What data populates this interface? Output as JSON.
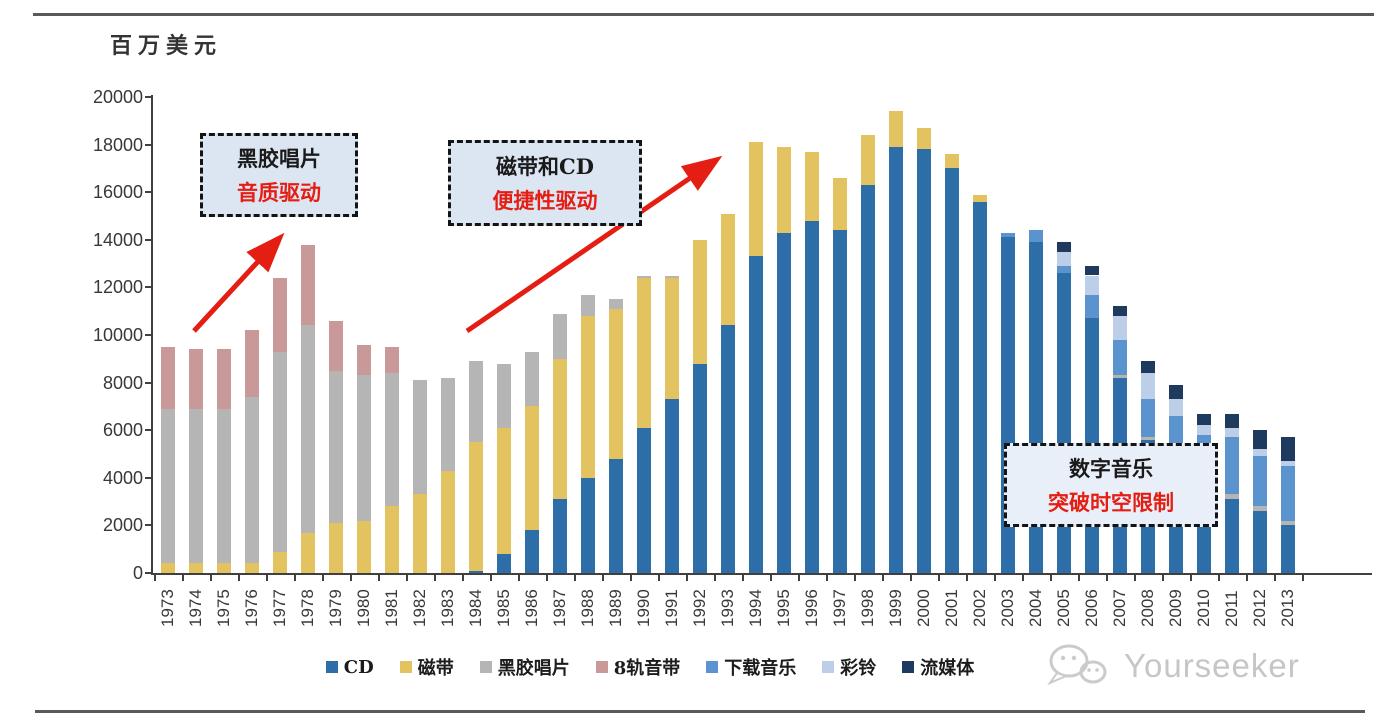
{
  "page": {
    "watermark": "Yourseeker"
  },
  "chart_data": {
    "type": "bar",
    "stacked": true,
    "title": "",
    "unit_label": "百万美元",
    "xlabel": "",
    "ylabel": "百万美元",
    "ylim": [
      0,
      20000
    ],
    "ytick_step": 2000,
    "gridlines": false,
    "legend_position": "bottom",
    "categories": [
      "1973",
      "1974",
      "1975",
      "1976",
      "1977",
      "1978",
      "1979",
      "1980",
      "1981",
      "1982",
      "1983",
      "1984",
      "1985",
      "1986",
      "1987",
      "1988",
      "1989",
      "1990",
      "1991",
      "1992",
      "1993",
      "1994",
      "1995",
      "1996",
      "1997",
      "1998",
      "1999",
      "2000",
      "2001",
      "2002",
      "2003",
      "2004",
      "2005",
      "2006",
      "2007",
      "2008",
      "2009",
      "2010",
      "2011",
      "2012",
      "2013"
    ],
    "series": [
      {
        "name": "CD",
        "color": "#2d6da8",
        "values": [
          0,
          0,
          0,
          0,
          0,
          0,
          0,
          0,
          0,
          0,
          0,
          100,
          800,
          1800,
          3100,
          4000,
          4800,
          6100,
          7300,
          8800,
          10400,
          13300,
          14300,
          14800,
          14400,
          16300,
          17900,
          17800,
          17000,
          15600,
          14100,
          13900,
          12600,
          10700,
          8200,
          5600,
          5200,
          4600,
          3100,
          2600,
          2000
        ]
      },
      {
        "name": "磁带",
        "color": "#e2c360",
        "values": [
          400,
          400,
          400,
          400,
          900,
          1700,
          2100,
          2200,
          2800,
          3300,
          4300,
          5400,
          5300,
          5200,
          5900,
          6800,
          6300,
          6300,
          5100,
          5200,
          4700,
          4800,
          3600,
          2900,
          2200,
          2100,
          1500,
          900,
          600,
          300,
          0,
          0,
          0,
          0,
          0,
          0,
          0,
          0,
          0,
          0,
          0
        ]
      },
      {
        "name": "黑胶唱片",
        "color": "#b5b5b5",
        "values": [
          6500,
          6500,
          6500,
          7000,
          8400,
          8700,
          6400,
          6100,
          5600,
          4800,
          3900,
          3400,
          2700,
          2300,
          1900,
          900,
          400,
          100,
          100,
          0,
          0,
          0,
          0,
          0,
          0,
          0,
          0,
          0,
          0,
          0,
          0,
          0,
          0,
          0,
          100,
          100,
          100,
          100,
          200,
          200,
          200
        ]
      },
      {
        "name": "8轨音带",
        "color": "#c9999a",
        "values": [
          2600,
          2500,
          2500,
          2800,
          3100,
          3400,
          2100,
          1300,
          1100,
          0,
          0,
          0,
          0,
          0,
          0,
          0,
          0,
          0,
          0,
          0,
          0,
          0,
          0,
          0,
          0,
          0,
          0,
          0,
          0,
          0,
          0,
          0,
          0,
          0,
          0,
          0,
          0,
          0,
          0,
          0,
          0
        ]
      },
      {
        "name": "下载音乐",
        "color": "#5b93cf",
        "values": [
          0,
          0,
          0,
          0,
          0,
          0,
          0,
          0,
          0,
          0,
          0,
          0,
          0,
          0,
          0,
          0,
          0,
          0,
          0,
          0,
          0,
          0,
          0,
          0,
          0,
          0,
          0,
          0,
          0,
          0,
          200,
          500,
          300,
          1000,
          1500,
          1600,
          1300,
          1100,
          2400,
          2100,
          2300
        ]
      },
      {
        "name": "彩铃",
        "color": "#bdcfe8",
        "values": [
          0,
          0,
          0,
          0,
          0,
          0,
          0,
          0,
          0,
          0,
          0,
          0,
          0,
          0,
          0,
          0,
          0,
          0,
          0,
          0,
          0,
          0,
          0,
          0,
          0,
          0,
          0,
          0,
          0,
          0,
          0,
          0,
          600,
          800,
          1000,
          1100,
          700,
          400,
          400,
          300,
          200
        ]
      },
      {
        "name": "流媒体",
        "color": "#1e3a5f",
        "values": [
          0,
          0,
          0,
          0,
          0,
          0,
          0,
          0,
          0,
          0,
          0,
          0,
          0,
          0,
          0,
          0,
          0,
          0,
          0,
          0,
          0,
          0,
          0,
          0,
          0,
          0,
          0,
          0,
          0,
          0,
          0,
          0,
          400,
          400,
          400,
          500,
          600,
          500,
          600,
          800,
          1000
        ]
      }
    ],
    "annotations": [
      {
        "line1": "黑胶唱片",
        "line2": "音质驱动"
      },
      {
        "line1": "磁带和CD",
        "line2": "便捷性驱动"
      },
      {
        "line1": "数字音乐",
        "line2": "突破时空限制"
      }
    ],
    "colors": {
      "accent_red": "#e51e14",
      "callout_bg": "#dce6f2",
      "callout_bg_light": "#e9eff8",
      "text_dark": "#1a1a1a",
      "axis": "#404040",
      "watermark": "#c6c6c6"
    }
  }
}
